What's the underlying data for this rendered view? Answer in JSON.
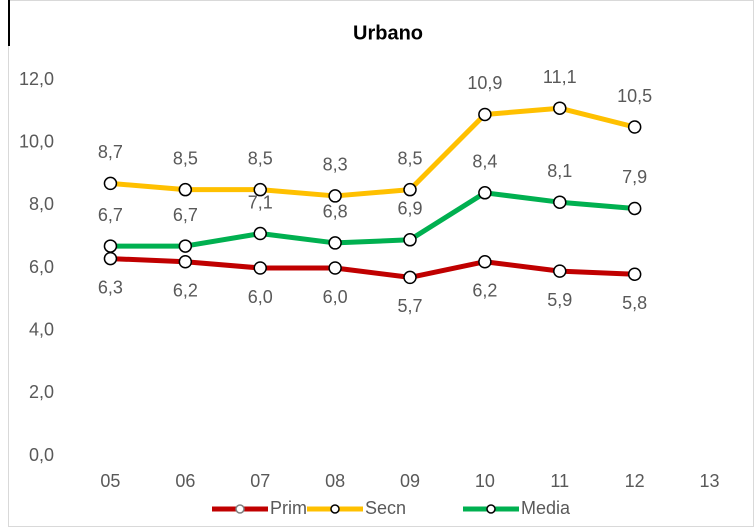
{
  "chart_data": {
    "type": "line",
    "title": "Urbano",
    "categories": [
      "05",
      "06",
      "07",
      "08",
      "09",
      "10",
      "11",
      "12",
      "13"
    ],
    "series": [
      {
        "name": "Prim",
        "color": "#c00000",
        "values": [
          6.3,
          6.2,
          6.0,
          6.0,
          5.7,
          6.2,
          5.9,
          5.8,
          null
        ],
        "value_labels": [
          "6,3",
          "6,2",
          "6,0",
          "6,0",
          "5,7",
          "6,2",
          "5,9",
          "5,8",
          null
        ]
      },
      {
        "name": "Secn",
        "color": "#ffc000",
        "values": [
          8.7,
          8.5,
          8.5,
          8.3,
          8.5,
          10.9,
          11.1,
          10.5,
          null
        ],
        "value_labels": [
          "8,7",
          "8,5",
          "8,5",
          "8,3",
          "8,5",
          "10,9",
          "11,1",
          "10,5",
          null
        ]
      },
      {
        "name": "Media",
        "color": "#00b050",
        "values": [
          6.7,
          6.7,
          7.1,
          6.8,
          6.9,
          8.4,
          8.1,
          7.9,
          null
        ],
        "value_labels": [
          "6,7",
          "6,7",
          "7,1",
          "6,8",
          "6,9",
          "8,4",
          "8,1",
          "7,9",
          null
        ]
      }
    ],
    "ylim": [
      0,
      12
    ],
    "yticks": [
      {
        "value": 0,
        "label": "0,0"
      },
      {
        "value": 2,
        "label": "2,0"
      },
      {
        "value": 4,
        "label": "4,0"
      },
      {
        "value": 6,
        "label": "6,0"
      },
      {
        "value": 8,
        "label": "8,0"
      },
      {
        "value": 10,
        "label": "10,0"
      },
      {
        "value": 12,
        "label": "12,0"
      }
    ],
    "grid": false,
    "legend": "bottom"
  }
}
